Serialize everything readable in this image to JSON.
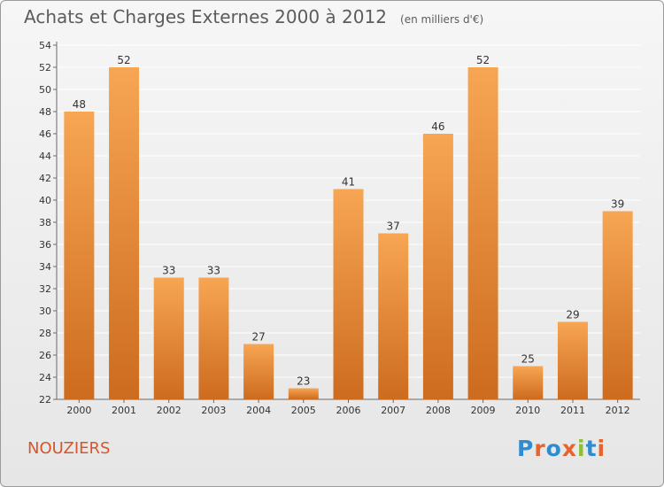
{
  "header": {
    "title": "Achats et Charges Externes 2000 à 2012",
    "subtitle": "(en milliers d'€)"
  },
  "footer": {
    "place": "NOUZIERS",
    "logo_text": "Proxiti",
    "logo_letters": [
      "P",
      "r",
      "o",
      "x",
      "i",
      "t",
      "i"
    ],
    "logo_colors": [
      "#2f8ccf",
      "#e8622b",
      "#2f8ccf",
      "#e8622b",
      "#8bbf34",
      "#2f8ccf",
      "#e8622b"
    ]
  },
  "colors": {
    "bar_light": "#f7a653",
    "bar_dark": "#cd6b1e",
    "grid": "#ffffff",
    "axis": "#6a6a6a",
    "text": "#333333"
  },
  "chart_data": {
    "type": "bar",
    "title": "Achats et Charges Externes 2000 à 2012",
    "subtitle": "(en milliers d'€)",
    "categories": [
      "2000",
      "2001",
      "2002",
      "2003",
      "2004",
      "2005",
      "2006",
      "2007",
      "2008",
      "2009",
      "2010",
      "2011",
      "2012"
    ],
    "values": [
      48,
      52,
      33,
      33,
      27,
      23,
      41,
      37,
      46,
      52,
      25,
      29,
      39
    ],
    "data_labels": [
      "48",
      "52",
      "33",
      "33",
      "27",
      "23",
      "41",
      "37",
      "46",
      "52",
      "25",
      "29",
      "39"
    ],
    "ylim": [
      22,
      54
    ],
    "yticks": [
      22,
      24,
      26,
      28,
      30,
      32,
      34,
      36,
      38,
      40,
      42,
      44,
      46,
      48,
      50,
      52,
      54
    ],
    "ytick_labels": [
      "22",
      "24",
      "26",
      "28",
      "30",
      "32",
      "34",
      "36",
      "38",
      "40",
      "42",
      "44",
      "46",
      "48",
      "50",
      "52",
      "54"
    ],
    "grid": true,
    "xlabel": "",
    "ylabel": ""
  }
}
